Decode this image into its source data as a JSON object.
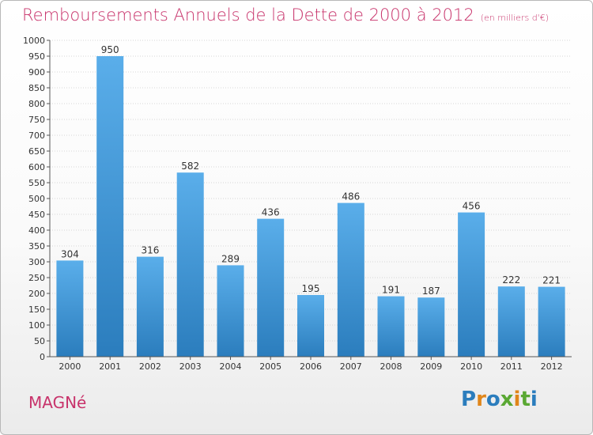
{
  "header": {
    "title": "Remboursements Annuels de la Dette de 2000 à 2012",
    "unit": "(en milliers d'€)"
  },
  "footer": {
    "commune": "MAGNé",
    "logo": "Proxiti"
  },
  "colors": {
    "title": "#c8336b",
    "bar_top": "#5aaeea",
    "bar_bottom": "#2b7dbd",
    "grid": "#d6d6d6",
    "logo_letters": [
      "#2b7dbd",
      "#e0861a",
      "#2b7dbd",
      "#5aa833",
      "#e0861a",
      "#5aa833",
      "#2b7dbd"
    ]
  },
  "chart_data": {
    "type": "bar",
    "categories": [
      "2000",
      "2001",
      "2002",
      "2003",
      "2004",
      "2005",
      "2006",
      "2007",
      "2008",
      "2009",
      "2010",
      "2011",
      "2012"
    ],
    "values": [
      304,
      950,
      316,
      582,
      289,
      436,
      195,
      486,
      191,
      187,
      456,
      222,
      221
    ],
    "ylim": [
      0,
      1000
    ],
    "ytick_step": 50,
    "grid": true,
    "data_labels": true
  }
}
